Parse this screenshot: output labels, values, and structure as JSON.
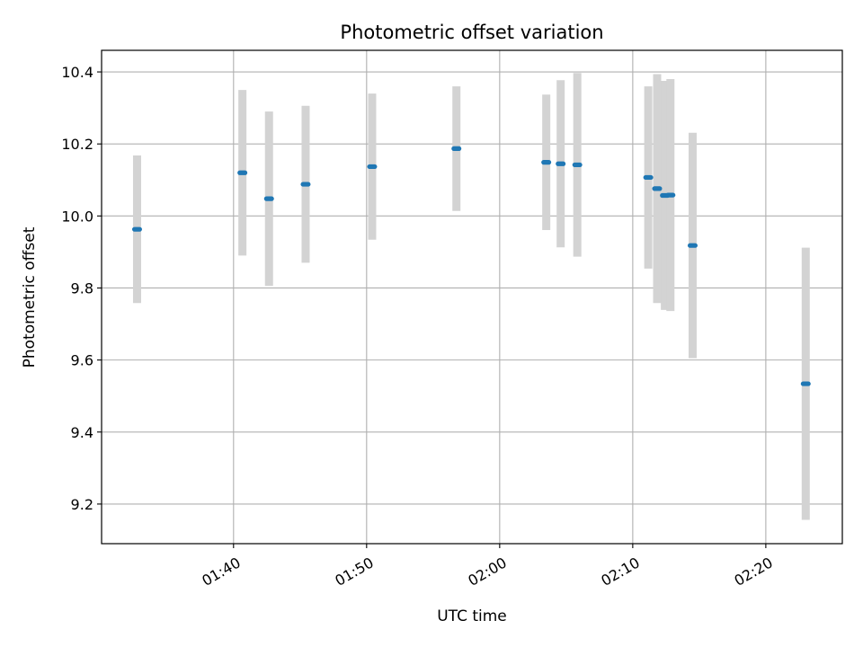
{
  "chart_data": {
    "type": "scatter",
    "title": "Photometric offset variation",
    "xlabel": "UTC time",
    "ylabel": "Photometric offset",
    "x_unit": "time of day (UTC)",
    "xlim": [
      "01:30:05",
      "02:25:45"
    ],
    "ylim": [
      9.09,
      10.46
    ],
    "x_ticks": [
      "01:40",
      "01:50",
      "02:00",
      "02:10",
      "02:20"
    ],
    "y_ticks": [
      9.2,
      9.4,
      9.6,
      9.8,
      10.0,
      10.2,
      10.4
    ],
    "grid": true,
    "colors": {
      "point": "#1f77b4",
      "errorbar": "#d3d3d3",
      "grid": "#b0b0b0"
    },
    "series": [
      {
        "points": [
          {
            "x": "01:32:45",
            "y": 9.963,
            "err": 0.205
          },
          {
            "x": "01:40:40",
            "y": 10.12,
            "err": 0.23
          },
          {
            "x": "01:42:40",
            "y": 10.048,
            "err": 0.242
          },
          {
            "x": "01:45:25",
            "y": 10.088,
            "err": 0.218
          },
          {
            "x": "01:50:25",
            "y": 10.137,
            "err": 0.203
          },
          {
            "x": "01:56:45",
            "y": 10.187,
            "err": 0.173
          },
          {
            "x": "02:03:30",
            "y": 10.149,
            "err": 0.188
          },
          {
            "x": "02:04:35",
            "y": 10.145,
            "err": 0.232
          },
          {
            "x": "02:05:50",
            "y": 10.142,
            "err": 0.255
          },
          {
            "x": "02:11:10",
            "y": 10.107,
            "err": 0.253
          },
          {
            "x": "02:11:50",
            "y": 10.076,
            "err": 0.318
          },
          {
            "x": "02:12:25",
            "y": 10.057,
            "err": 0.318
          },
          {
            "x": "02:12:50",
            "y": 10.058,
            "err": 0.322
          },
          {
            "x": "02:14:30",
            "y": 9.918,
            "err": 0.313
          },
          {
            "x": "02:23:00",
            "y": 9.534,
            "err": 0.378
          }
        ]
      }
    ]
  }
}
